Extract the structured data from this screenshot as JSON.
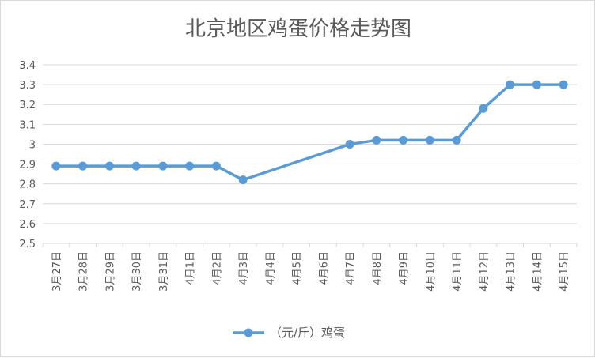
{
  "chart_data": {
    "type": "line",
    "title": "北京地区鸡蛋价格走势图",
    "xlabel": "",
    "ylabel": "",
    "categories": [
      "3月27日",
      "3月28日",
      "3月29日",
      "3月30日",
      "3月31日",
      "4月1日",
      "4月2日",
      "4月3日",
      "4月4日",
      "4月5日",
      "4月6日",
      "4月7日",
      "4月8日",
      "4月9日",
      "4月10日",
      "4月11日",
      "4月12日",
      "4月13日",
      "4月14日",
      "4月15日"
    ],
    "series": [
      {
        "name": "（元/斤）鸡蛋",
        "color": "#5b9bd5",
        "values": [
          2.89,
          2.89,
          2.89,
          2.89,
          2.89,
          2.89,
          2.89,
          2.82,
          null,
          null,
          null,
          3.0,
          3.02,
          3.02,
          3.02,
          3.02,
          3.18,
          3.3,
          3.3,
          3.3
        ]
      }
    ],
    "ylim": [
      2.5,
      3.4
    ],
    "yticks": [
      "2.5",
      "2.6",
      "2.7",
      "2.8",
      "2.9",
      "3",
      "3.1",
      "3.2",
      "3.3",
      "3.4"
    ],
    "grid": true,
    "legend_position": "bottom",
    "gridline_color": "#d9d9d9",
    "text_color": "#595959"
  }
}
